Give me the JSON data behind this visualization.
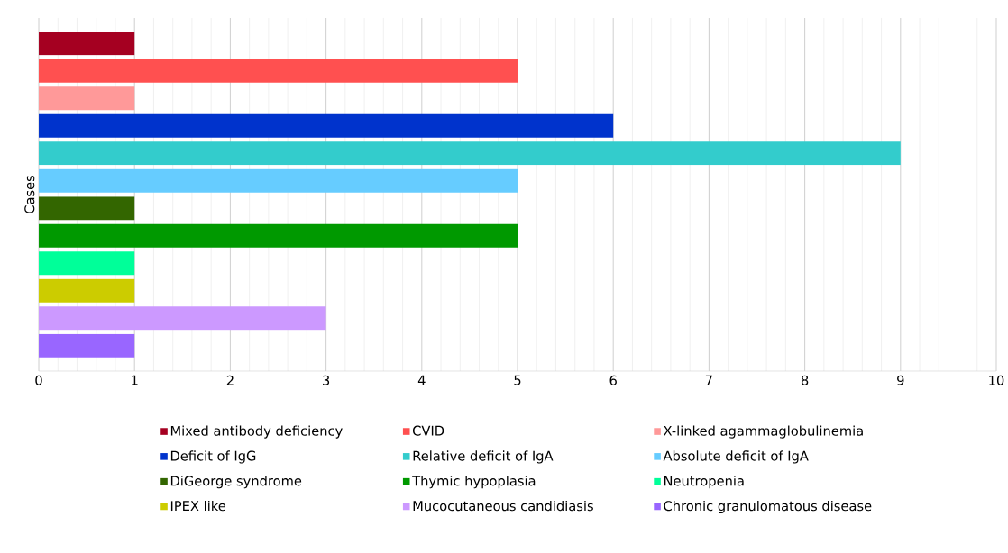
{
  "chart_data": {
    "type": "bar",
    "orientation": "horizontal",
    "categories": [
      "Cases"
    ],
    "series": [
      {
        "name": "Mixed antibody deficiency",
        "color": "#a50021",
        "values": [
          1
        ]
      },
      {
        "name": "CVID",
        "color": "#ff5050",
        "values": [
          5
        ]
      },
      {
        "name": "X-linked agammaglobulinemia",
        "color": "#ff9999",
        "values": [
          1
        ]
      },
      {
        "name": "Deficit of IgG",
        "color": "#0033cc",
        "values": [
          6
        ]
      },
      {
        "name": "Relative deficit of IgA",
        "color": "#33cccc",
        "values": [
          9
        ]
      },
      {
        "name": "Absolute deficit of IgA",
        "color": "#66ccff",
        "values": [
          5
        ]
      },
      {
        "name": "DiGeorge syndrome",
        "color": "#336600",
        "values": [
          1
        ]
      },
      {
        "name": "Thymic hypoplasia",
        "color": "#009900",
        "values": [
          5
        ]
      },
      {
        "name": "Neutropenia",
        "color": "#00ff99",
        "values": [
          1
        ]
      },
      {
        "name": "IPEX like",
        "color": "#cccc00",
        "values": [
          1
        ]
      },
      {
        "name": "Mucocutaneous candidiasis",
        "color": "#cc99ff",
        "values": [
          3
        ]
      },
      {
        "name": "Chronic granulomatous disease",
        "color": "#9966ff",
        "values": [
          1
        ]
      }
    ],
    "xlim": [
      0,
      10
    ],
    "xticks": [
      0,
      1,
      2,
      3,
      4,
      5,
      6,
      7,
      8,
      9,
      10
    ],
    "grid": "x",
    "legend": "bottom"
  }
}
